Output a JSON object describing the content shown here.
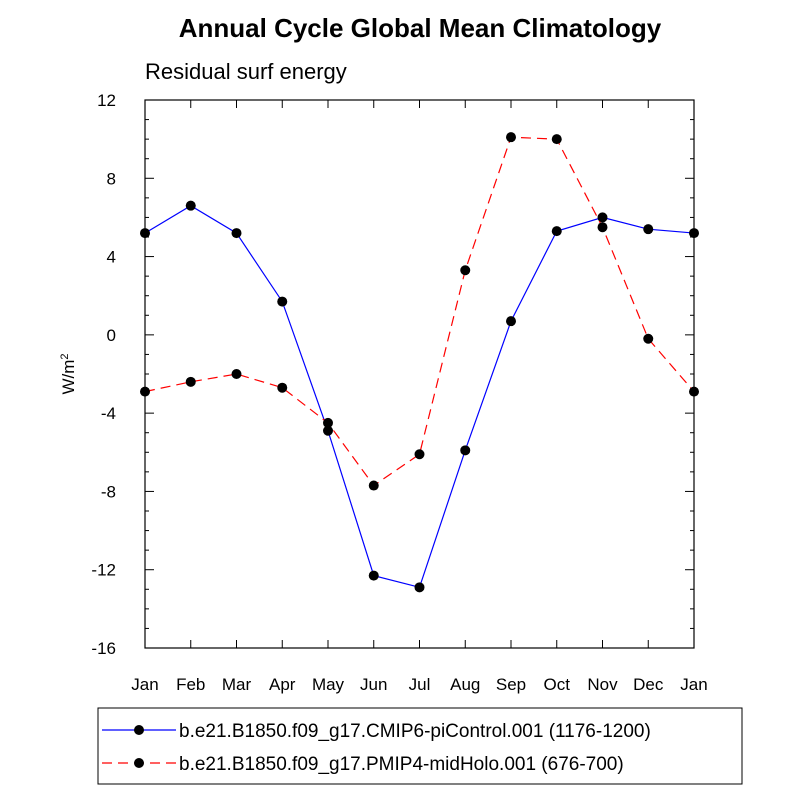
{
  "chart_data": {
    "type": "line",
    "title": "Annual Cycle Global Mean Climatology",
    "subtitle": "Residual surf energy",
    "ylabel_base": "W/m",
    "ylabel_sup": "2",
    "categories": [
      "Jan",
      "Feb",
      "Mar",
      "Apr",
      "May",
      "Jun",
      "Jul",
      "Aug",
      "Sep",
      "Oct",
      "Nov",
      "Dec",
      "Jan"
    ],
    "ylim": [
      -16,
      12
    ],
    "yticks": [
      12,
      8,
      4,
      0,
      -4,
      -8,
      -12,
      -16
    ],
    "ytick_labels": [
      "12",
      "8",
      "4",
      "0",
      "-4",
      "-8",
      "-12",
      "-16"
    ],
    "series": [
      {
        "name": "b.e21.B1850.f09_g17.CMIP6-piControl.001 (1176-1200)",
        "color": "#0000ff",
        "dash": "solid",
        "values": [
          5.2,
          6.6,
          5.2,
          1.7,
          -4.9,
          -12.3,
          -12.9,
          -5.9,
          0.7,
          5.3,
          6.0,
          5.4,
          5.2
        ]
      },
      {
        "name": "b.e21.B1850.f09_g17.PMIP4-midHolo.001 (676-700)",
        "color": "#ff0000",
        "dash": "dashed",
        "values": [
          -2.9,
          -2.4,
          -2.0,
          -2.7,
          -4.5,
          -7.7,
          -6.1,
          3.3,
          10.1,
          10.0,
          5.5,
          -0.2,
          -2.9
        ]
      }
    ],
    "marker_color": "#000000",
    "grid": false,
    "legend_position": "bottom"
  }
}
